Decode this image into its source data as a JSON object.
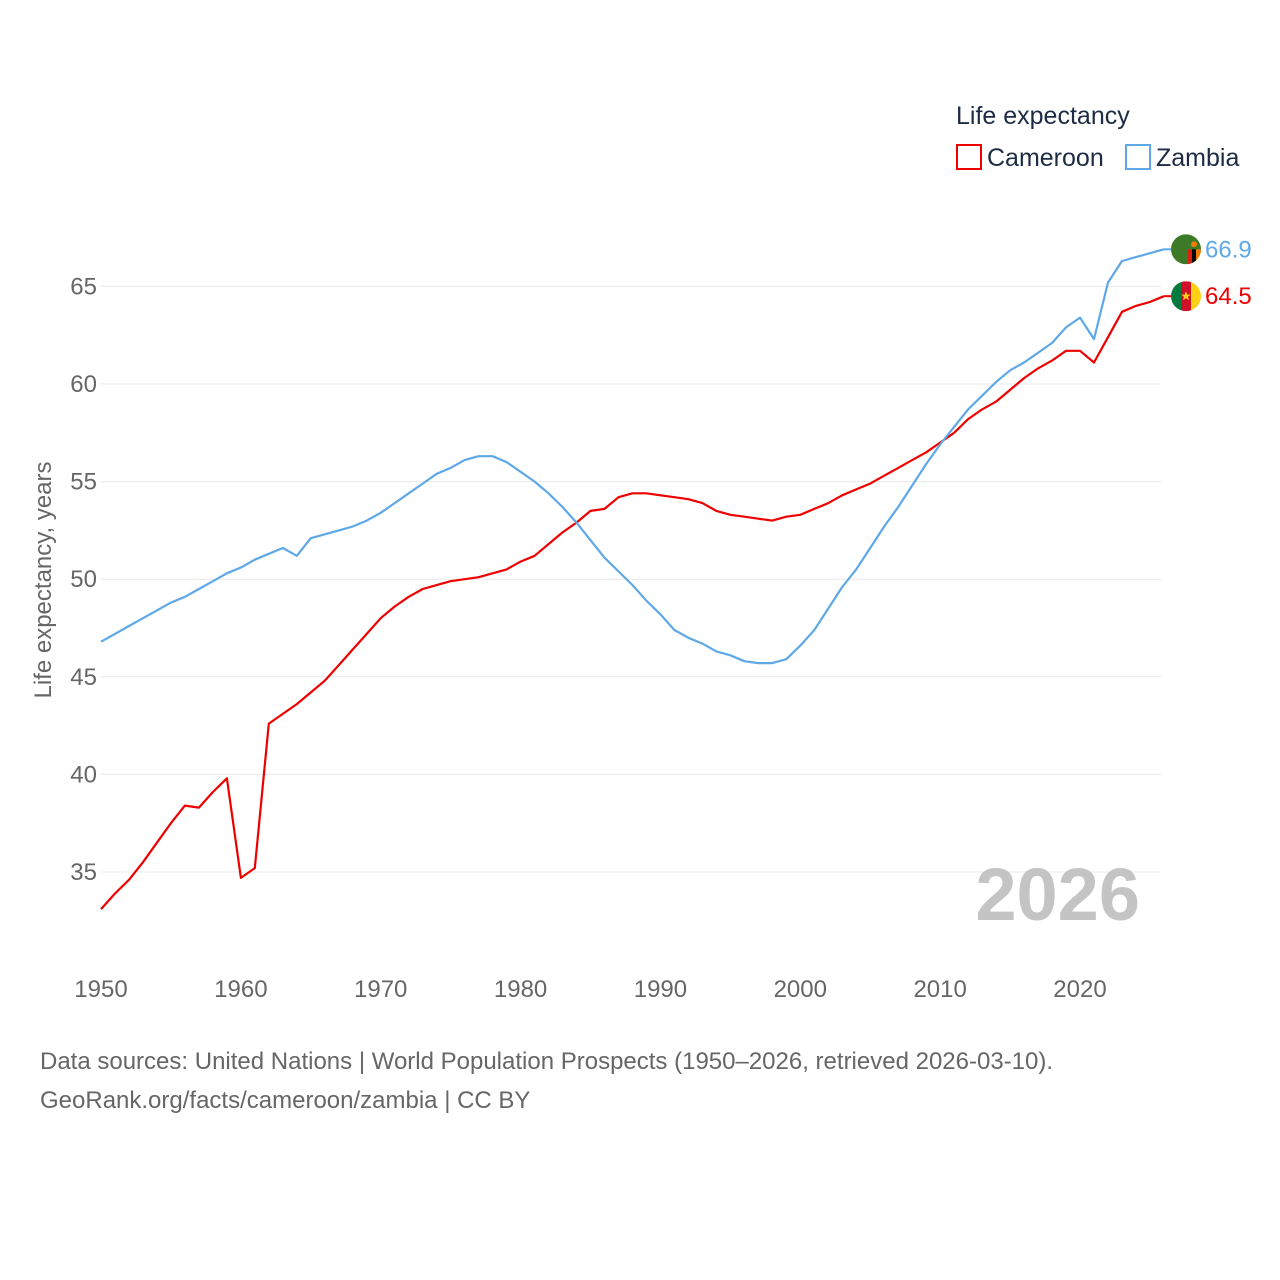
{
  "chart_data": {
    "type": "line",
    "title": "",
    "xlabel": "",
    "ylabel": "Life expectancy, years",
    "xlim": [
      1950,
      2026
    ],
    "ylim": [
      32,
      68.5
    ],
    "xticks": [
      1950,
      1960,
      1970,
      1980,
      1990,
      2000,
      2010,
      2020
    ],
    "yticks": [
      35,
      40,
      45,
      50,
      55,
      60,
      65
    ],
    "grid": true,
    "legend": {
      "title": "Life expectancy",
      "position": "top-right"
    },
    "year_label": "2026",
    "x": [
      1950,
      1951,
      1952,
      1953,
      1954,
      1955,
      1956,
      1957,
      1958,
      1959,
      1960,
      1961,
      1962,
      1963,
      1964,
      1965,
      1966,
      1967,
      1968,
      1969,
      1970,
      1971,
      1972,
      1973,
      1974,
      1975,
      1976,
      1977,
      1978,
      1979,
      1980,
      1981,
      1982,
      1983,
      1984,
      1985,
      1986,
      1987,
      1988,
      1989,
      1990,
      1991,
      1992,
      1993,
      1994,
      1995,
      1996,
      1997,
      1998,
      1999,
      2000,
      2001,
      2002,
      2003,
      2004,
      2005,
      2006,
      2007,
      2008,
      2009,
      2010,
      2011,
      2012,
      2013,
      2014,
      2015,
      2016,
      2017,
      2018,
      2019,
      2020,
      2021,
      2022,
      2023,
      2024,
      2025,
      2026
    ],
    "series": [
      {
        "name": "Cameroon",
        "color": "#ee0000",
        "end_label": "64.5",
        "values": [
          33.1,
          33.9,
          34.6,
          35.5,
          36.5,
          37.5,
          38.4,
          38.3,
          39.1,
          39.8,
          34.7,
          35.2,
          42.6,
          43.1,
          43.6,
          44.2,
          44.8,
          45.6,
          46.4,
          47.2,
          48.0,
          48.6,
          49.1,
          49.5,
          49.7,
          49.9,
          50.0,
          50.1,
          50.3,
          50.5,
          50.9,
          51.2,
          51.8,
          52.4,
          52.9,
          53.5,
          53.6,
          54.2,
          54.4,
          54.4,
          54.3,
          54.2,
          54.1,
          53.9,
          53.5,
          53.3,
          53.2,
          53.1,
          53.0,
          53.2,
          53.3,
          53.6,
          53.9,
          54.3,
          54.6,
          54.9,
          55.3,
          55.7,
          56.1,
          56.5,
          57.0,
          57.5,
          58.2,
          58.7,
          59.1,
          59.7,
          60.3,
          60.8,
          61.2,
          61.7,
          61.7,
          61.1,
          62.4,
          63.7,
          64.0,
          64.2,
          64.5
        ]
      },
      {
        "name": "Zambia",
        "color": "#5fa8e8",
        "end_label": "66.9",
        "values": [
          46.8,
          47.2,
          47.6,
          48.0,
          48.4,
          48.8,
          49.1,
          49.5,
          49.9,
          50.3,
          50.6,
          51.0,
          51.3,
          51.6,
          51.2,
          52.1,
          52.3,
          52.5,
          52.7,
          53.0,
          53.4,
          53.9,
          54.4,
          54.9,
          55.4,
          55.7,
          56.1,
          56.3,
          56.3,
          56.0,
          55.5,
          55.0,
          54.4,
          53.7,
          52.9,
          52.0,
          51.1,
          50.4,
          49.7,
          48.9,
          48.2,
          47.4,
          47.0,
          46.7,
          46.3,
          46.1,
          45.8,
          45.7,
          45.7,
          45.9,
          46.6,
          47.4,
          48.5,
          49.6,
          50.5,
          51.6,
          52.7,
          53.7,
          54.8,
          55.9,
          56.9,
          57.8,
          58.7,
          59.4,
          60.1,
          60.7,
          61.1,
          61.6,
          62.1,
          62.9,
          63.4,
          62.3,
          65.2,
          66.3,
          66.5,
          66.7,
          66.9
        ]
      }
    ]
  },
  "source": {
    "line1": "Data sources: United Nations | World Population Prospects (1950–2026, retrieved 2026-03-10).",
    "line2": "GeoRank.org/facts/cameroon/zambia | CC BY"
  }
}
